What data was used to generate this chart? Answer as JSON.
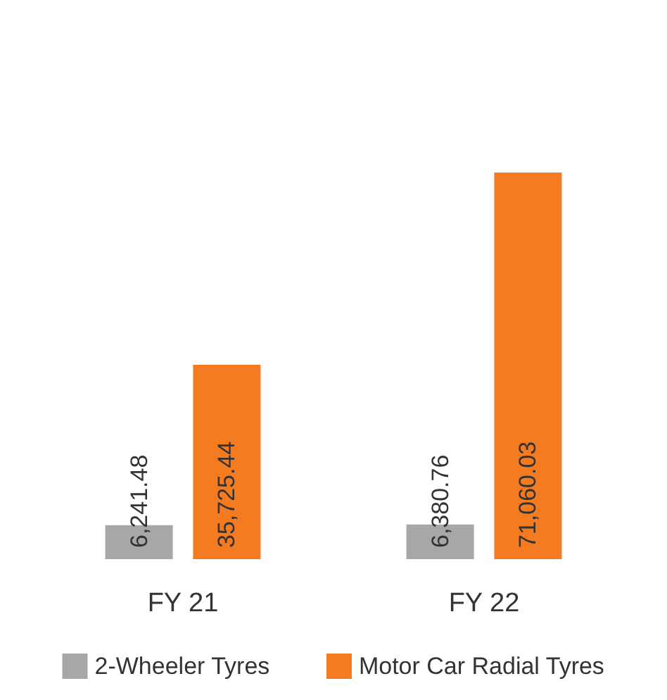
{
  "chart_data": {
    "type": "bar",
    "categories": [
      "FY 21",
      "FY 22"
    ],
    "series": [
      {
        "name": "2-Wheeler Tyres",
        "color": "#a7a7a9",
        "values": [
          6241.48,
          6380.76
        ],
        "value_labels": [
          "6,241.48",
          "6,380.76"
        ]
      },
      {
        "name": "Motor Car Radial Tyres",
        "color": "#f47b20",
        "values": [
          35725.44,
          71060.03
        ],
        "value_labels": [
          "35,725.44",
          "71,060.03"
        ]
      }
    ],
    "legend": "bottom"
  }
}
